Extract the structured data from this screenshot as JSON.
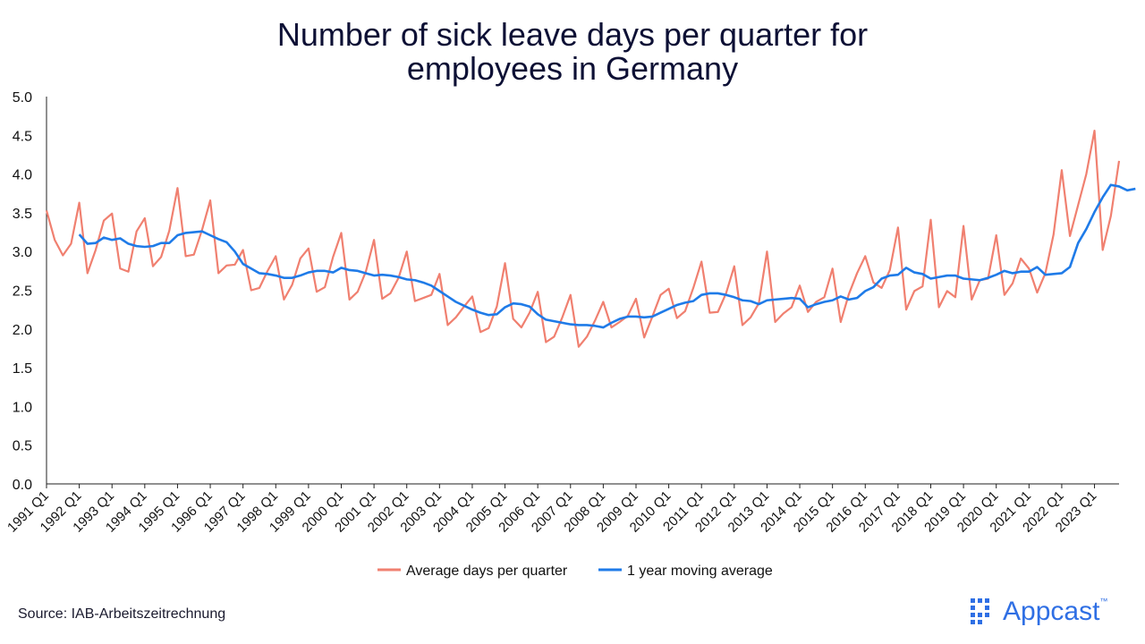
{
  "title_lines": [
    "Number of sick leave days per quarter for",
    "employees in Germany"
  ],
  "source": "Source: IAB-Arbeitszeitrechnung",
  "logo_text": "Appcast",
  "logo_tm": "™",
  "colors": {
    "series_avg": "#f08070",
    "series_ma": "#1f7be8",
    "axis": "#222222",
    "text": "#111111"
  },
  "chart_data": {
    "type": "line",
    "title": "Number of sick leave days per quarter for employees in Germany",
    "xlabel": "",
    "ylabel": "",
    "ylim": [
      0,
      5
    ],
    "yticks": [
      0,
      0.5,
      1,
      1.5,
      2,
      2.5,
      3,
      3.5,
      4,
      4.5,
      5
    ],
    "ytick_labels": [
      "0.0",
      "0.5",
      "1.0",
      "1.5",
      "2.0",
      "2.5",
      "3.0",
      "3.5",
      "4.0",
      "4.5",
      "5.0"
    ],
    "x_tick_labels": [
      "1991 Q1",
      "1992 Q1",
      "1993 Q1",
      "1994 Q1",
      "1995 Q1",
      "1996 Q1",
      "1997 Q1",
      "1998 Q1",
      "1999 Q1",
      "2000 Q1",
      "2001 Q1",
      "2002 Q1",
      "2003 Q1",
      "2004 Q1",
      "2005 Q1",
      "2006 Q1",
      "2007 Q1",
      "2008 Q1",
      "2009 Q1",
      "2010 Q1",
      "2011 Q1",
      "2012 Q1",
      "2013 Q1",
      "2014 Q1",
      "2015 Q1",
      "2016 Q1",
      "2017 Q1",
      "2018 Q1",
      "2019 Q1",
      "2020 Q1",
      "2021 Q1",
      "2022 Q1",
      "2023 Q1"
    ],
    "legend_position": "bottom-center",
    "series": [
      {
        "name": "Average days per quarter",
        "values": [
          3.53,
          3.15,
          2.95,
          3.1,
          3.63,
          2.72,
          3.02,
          3.4,
          3.49,
          2.78,
          2.74,
          3.26,
          3.43,
          2.81,
          2.93,
          3.27,
          3.82,
          2.94,
          2.96,
          3.28,
          3.66,
          2.72,
          2.82,
          2.83,
          3.02,
          2.5,
          2.53,
          2.75,
          2.94,
          2.38,
          2.57,
          2.91,
          3.04,
          2.48,
          2.54,
          2.93,
          3.24,
          2.38,
          2.48,
          2.74,
          3.15,
          2.39,
          2.46,
          2.66,
          3.0,
          2.36,
          2.4,
          2.44,
          2.71,
          2.05,
          2.15,
          2.29,
          2.42,
          1.96,
          2.01,
          2.29,
          2.85,
          2.13,
          2.02,
          2.21,
          2.48,
          1.83,
          1.9,
          2.15,
          2.44,
          1.77,
          1.9,
          2.11,
          2.35,
          2.02,
          2.09,
          2.17,
          2.39,
          1.89,
          2.16,
          2.44,
          2.52,
          2.14,
          2.23,
          2.53,
          2.87,
          2.21,
          2.22,
          2.46,
          2.81,
          2.05,
          2.15,
          2.33,
          3.0,
          2.09,
          2.2,
          2.28,
          2.56,
          2.22,
          2.35,
          2.41,
          2.78,
          2.09,
          2.45,
          2.72,
          2.94,
          2.6,
          2.53,
          2.76,
          3.31,
          2.25,
          2.49,
          2.55,
          3.41,
          2.28,
          2.49,
          2.41,
          3.33,
          2.38,
          2.63,
          2.65,
          3.21,
          2.44,
          2.59,
          2.91,
          2.78,
          2.47,
          2.72,
          3.22,
          4.05,
          3.2,
          3.6,
          4.0,
          4.56,
          3.02,
          3.46,
          4.17
        ]
      },
      {
        "name": "1 year moving average",
        "start_index": 4,
        "values": [
          3.22,
          3.1,
          3.11,
          3.18,
          3.15,
          3.17,
          3.1,
          3.07,
          3.06,
          3.07,
          3.11,
          3.11,
          3.21,
          3.24,
          3.25,
          3.26,
          3.21,
          3.16,
          3.12,
          3.0,
          2.84,
          2.78,
          2.72,
          2.71,
          2.69,
          2.66,
          2.66,
          2.69,
          2.73,
          2.75,
          2.75,
          2.73,
          2.79,
          2.76,
          2.75,
          2.72,
          2.69,
          2.7,
          2.69,
          2.67,
          2.64,
          2.63,
          2.6,
          2.56,
          2.49,
          2.42,
          2.35,
          2.3,
          2.25,
          2.21,
          2.18,
          2.19,
          2.28,
          2.33,
          2.32,
          2.29,
          2.19,
          2.12,
          2.1,
          2.08,
          2.06,
          2.05,
          2.05,
          2.04,
          2.02,
          2.08,
          2.13,
          2.16,
          2.16,
          2.15,
          2.16,
          2.21,
          2.26,
          2.31,
          2.34,
          2.36,
          2.44,
          2.46,
          2.46,
          2.44,
          2.41,
          2.37,
          2.36,
          2.32,
          2.37,
          2.38,
          2.39,
          2.4,
          2.39,
          2.28,
          2.32,
          2.35,
          2.37,
          2.42,
          2.38,
          2.4,
          2.49,
          2.54,
          2.65,
          2.69,
          2.7,
          2.79,
          2.73,
          2.71,
          2.65,
          2.67,
          2.69,
          2.69,
          2.65,
          2.64,
          2.63,
          2.66,
          2.7,
          2.75,
          2.72,
          2.74,
          2.74,
          2.8,
          2.7,
          2.71,
          2.72,
          2.8,
          3.11,
          3.29,
          3.51,
          3.7,
          3.86,
          3.84,
          3.79,
          3.81
        ]
      }
    ]
  }
}
